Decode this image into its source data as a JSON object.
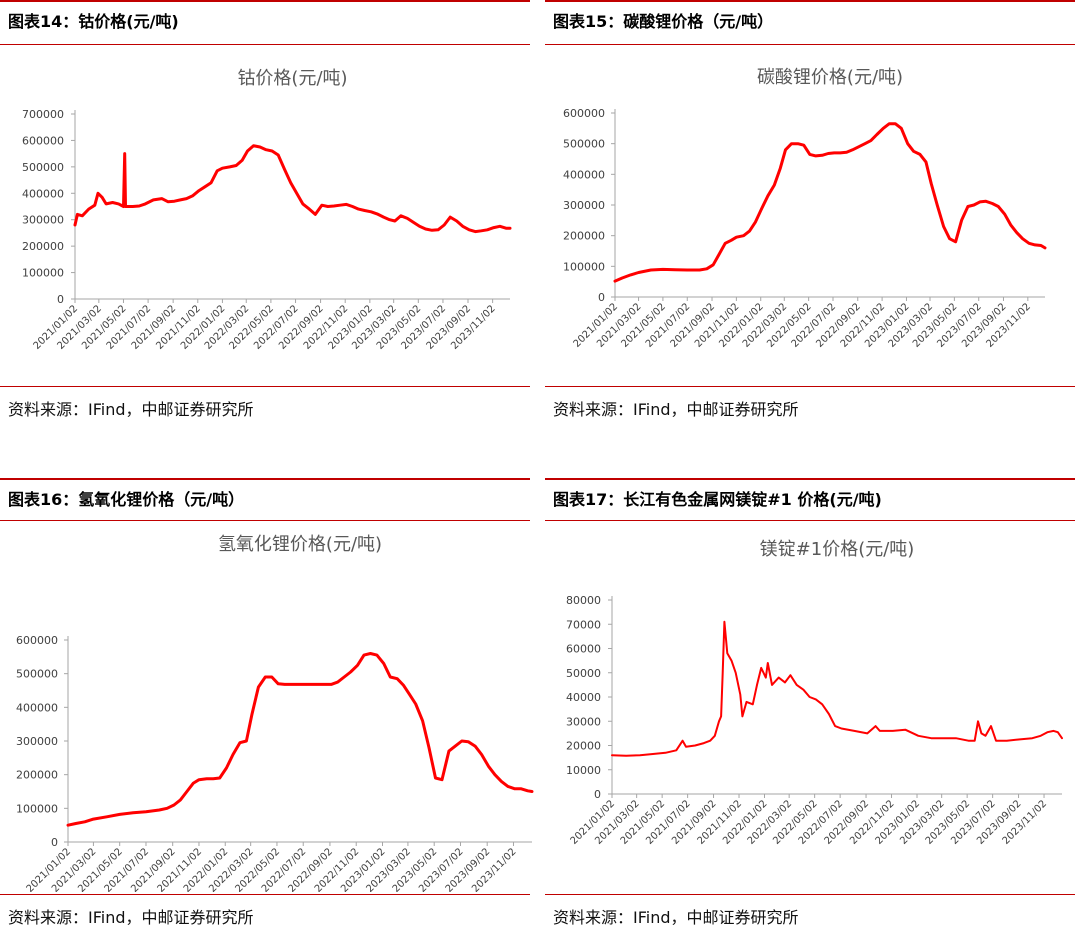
{
  "panels": [
    {
      "title": "图表14：钴价格(元/吨)",
      "source": "资料来源：IFind，中邮证券研究所"
    },
    {
      "title": "图表15：碳酸锂价格（元/吨）",
      "source": "资料来源：IFind，中邮证券研究所"
    },
    {
      "title": "图表16：氢氧化锂价格（元/吨）",
      "source": "资料来源：IFind，中邮证券研究所"
    },
    {
      "title": "图表17：长江有色金属网镁锭#1 价格(元/吨)",
      "source": "资料来源：IFind，中邮证券研究所"
    }
  ],
  "chart_data": [
    {
      "type": "line",
      "title": "钴价格(元/吨)",
      "color": "#ff0000",
      "ylim": [
        0,
        700000
      ],
      "yticks": [
        "0",
        "100000",
        "200000",
        "300000",
        "400000",
        "500000",
        "600000",
        "700000"
      ],
      "xlim": [
        "2021-01-02",
        "2023-12-15"
      ],
      "xticks": [
        "2021/01/02",
        "2021/03/02",
        "2021/05/02",
        "2021/07/02",
        "2021/09/02",
        "2021/11/02",
        "2022/01/02",
        "2022/03/02",
        "2022/05/02",
        "2022/07/02",
        "2022/09/02",
        "2022/11/02",
        "2023/01/02",
        "2023/03/02",
        "2023/05/02",
        "2023/07/02",
        "2023/09/02",
        "2023/11/02"
      ],
      "grid": false,
      "x": [
        "2021-01-02",
        "2021-01-08",
        "2021-01-20",
        "2021-02-05",
        "2021-02-20",
        "2021-02-28",
        "2021-03-10",
        "2021-03-20",
        "2021-04-05",
        "2021-04-20",
        "2021-05-02",
        "2021-05-05",
        "2021-05-07",
        "2021-05-10",
        "2021-05-25",
        "2021-06-10",
        "2021-06-25",
        "2021-07-15",
        "2021-08-05",
        "2021-08-20",
        "2021-09-05",
        "2021-09-20",
        "2021-10-05",
        "2021-10-20",
        "2021-11-05",
        "2021-11-20",
        "2021-12-05",
        "2021-12-20",
        "2022-01-02",
        "2022-01-20",
        "2022-02-05",
        "2022-02-20",
        "2022-03-05",
        "2022-03-20",
        "2022-04-05",
        "2022-04-20",
        "2022-05-05",
        "2022-05-20",
        "2022-06-05",
        "2022-06-20",
        "2022-07-05",
        "2022-07-20",
        "2022-08-05",
        "2022-08-20",
        "2022-09-05",
        "2022-09-20",
        "2022-10-05",
        "2022-10-20",
        "2022-11-05",
        "2022-11-20",
        "2022-12-05",
        "2022-12-20",
        "2023-01-05",
        "2023-01-20",
        "2023-02-05",
        "2023-02-20",
        "2023-03-05",
        "2023-03-20",
        "2023-04-05",
        "2023-04-20",
        "2023-05-05",
        "2023-05-20",
        "2023-06-05",
        "2023-06-20",
        "2023-07-05",
        "2023-07-20",
        "2023-08-05",
        "2023-08-20",
        "2023-09-05",
        "2023-09-20",
        "2023-10-05",
        "2023-10-20",
        "2023-11-05",
        "2023-11-20",
        "2023-12-05",
        "2023-12-15"
      ],
      "values": [
        280000,
        320000,
        315000,
        340000,
        355000,
        400000,
        385000,
        360000,
        365000,
        360000,
        350000,
        550000,
        350000,
        350000,
        350000,
        352000,
        360000,
        375000,
        380000,
        368000,
        370000,
        375000,
        380000,
        390000,
        410000,
        425000,
        440000,
        485000,
        495000,
        500000,
        505000,
        525000,
        560000,
        580000,
        575000,
        565000,
        560000,
        545000,
        490000,
        440000,
        400000,
        360000,
        340000,
        320000,
        355000,
        350000,
        352000,
        355000,
        358000,
        350000,
        340000,
        335000,
        330000,
        322000,
        310000,
        300000,
        295000,
        315000,
        305000,
        290000,
        275000,
        265000,
        260000,
        262000,
        280000,
        310000,
        295000,
        275000,
        262000,
        255000,
        258000,
        262000,
        270000,
        275000,
        268000,
        268000
      ]
    },
    {
      "type": "line",
      "title": "碳酸锂价格(元/吨)",
      "color": "#ff0000",
      "ylim": [
        0,
        600000
      ],
      "yticks": [
        "0",
        "100000",
        "200000",
        "300000",
        "400000",
        "500000",
        "600000"
      ],
      "xlim": [
        "2021-01-02",
        "2023-12-15"
      ],
      "xticks": [
        "2021/01/02",
        "2021/03/02",
        "2021/05/02",
        "2021/07/02",
        "2021/09/02",
        "2021/11/02",
        "2022/01/02",
        "2022/03/02",
        "2022/05/02",
        "2022/07/02",
        "2022/09/02",
        "2022/11/02",
        "2023/01/02",
        "2023/03/02",
        "2023/05/02",
        "2023/07/02",
        "2023/09/02",
        "2023/11/02"
      ],
      "grid": false,
      "x": [
        "2021-01-02",
        "2021-01-20",
        "2021-02-10",
        "2021-03-02",
        "2021-04-02",
        "2021-05-02",
        "2021-06-02",
        "2021-07-02",
        "2021-08-02",
        "2021-08-20",
        "2021-09-05",
        "2021-09-20",
        "2021-10-05",
        "2021-10-20",
        "2021-11-02",
        "2021-11-20",
        "2021-12-05",
        "2021-12-20",
        "2022-01-05",
        "2022-01-20",
        "2022-02-05",
        "2022-02-20",
        "2022-03-05",
        "2022-03-20",
        "2022-04-05",
        "2022-04-20",
        "2022-05-05",
        "2022-05-20",
        "2022-06-05",
        "2022-06-20",
        "2022-07-05",
        "2022-07-20",
        "2022-08-05",
        "2022-08-20",
        "2022-09-05",
        "2022-09-20",
        "2022-10-05",
        "2022-10-20",
        "2022-11-05",
        "2022-11-20",
        "2022-12-05",
        "2022-12-20",
        "2023-01-05",
        "2023-01-20",
        "2023-02-05",
        "2023-02-20",
        "2023-03-05",
        "2023-03-20",
        "2023-04-05",
        "2023-04-20",
        "2023-05-05",
        "2023-05-20",
        "2023-06-05",
        "2023-06-20",
        "2023-07-05",
        "2023-07-20",
        "2023-08-05",
        "2023-08-20",
        "2023-09-05",
        "2023-09-20",
        "2023-10-05",
        "2023-10-20",
        "2023-11-05",
        "2023-11-20",
        "2023-12-05",
        "2023-12-15"
      ],
      "values": [
        52000,
        62000,
        72000,
        80000,
        88000,
        90000,
        89000,
        88000,
        88000,
        92000,
        105000,
        140000,
        175000,
        185000,
        195000,
        200000,
        215000,
        245000,
        290000,
        330000,
        365000,
        420000,
        480000,
        500000,
        500000,
        495000,
        465000,
        460000,
        462000,
        468000,
        470000,
        470000,
        472000,
        480000,
        490000,
        500000,
        510000,
        530000,
        550000,
        565000,
        565000,
        550000,
        500000,
        475000,
        465000,
        440000,
        370000,
        300000,
        230000,
        190000,
        180000,
        250000,
        295000,
        300000,
        310000,
        312000,
        305000,
        295000,
        270000,
        235000,
        210000,
        190000,
        175000,
        170000,
        168000,
        160000
      ]
    },
    {
      "type": "line",
      "title": "氢氧化锂价格(元/吨)",
      "color": "#ff0000",
      "ylim": [
        0,
        600000
      ],
      "yticks": [
        "0",
        "100000",
        "200000",
        "300000",
        "400000",
        "500000",
        "600000"
      ],
      "xlim": [
        "2021-01-02",
        "2023-12-15"
      ],
      "xticks": [
        "2021/01/02",
        "2021/03/02",
        "2021/05/02",
        "2021/07/02",
        "2021/09/02",
        "2021/11/02",
        "2022/01/02",
        "2022/03/02",
        "2022/05/02",
        "2022/07/02",
        "2022/09/02",
        "2022/11/02",
        "2023/01/02",
        "2023/03/02",
        "2023/05/02",
        "2023/07/02",
        "2023/09/02",
        "2023/11/02"
      ],
      "grid": false,
      "x": [
        "2021-01-02",
        "2021-01-20",
        "2021-02-10",
        "2021-03-02",
        "2021-04-02",
        "2021-05-02",
        "2021-06-02",
        "2021-07-02",
        "2021-08-02",
        "2021-08-20",
        "2021-09-05",
        "2021-09-20",
        "2021-10-05",
        "2021-10-20",
        "2021-11-02",
        "2021-11-20",
        "2021-12-05",
        "2021-12-20",
        "2022-01-05",
        "2022-01-20",
        "2022-02-05",
        "2022-02-20",
        "2022-03-05",
        "2022-03-20",
        "2022-04-05",
        "2022-04-20",
        "2022-05-05",
        "2022-05-20",
        "2022-06-05",
        "2022-07-05",
        "2022-08-05",
        "2022-09-05",
        "2022-09-20",
        "2022-10-05",
        "2022-10-20",
        "2022-11-05",
        "2022-11-20",
        "2022-12-05",
        "2022-12-20",
        "2023-01-05",
        "2023-01-20",
        "2023-02-05",
        "2023-02-20",
        "2023-03-05",
        "2023-03-20",
        "2023-04-05",
        "2023-04-20",
        "2023-05-05",
        "2023-05-20",
        "2023-06-05",
        "2023-06-20",
        "2023-07-05",
        "2023-07-20",
        "2023-08-05",
        "2023-08-20",
        "2023-09-05",
        "2023-09-20",
        "2023-10-05",
        "2023-10-20",
        "2023-11-05",
        "2023-11-20",
        "2023-12-05",
        "2023-12-15"
      ],
      "values": [
        50000,
        55000,
        60000,
        68000,
        75000,
        82000,
        87000,
        90000,
        95000,
        100000,
        110000,
        125000,
        150000,
        175000,
        185000,
        188000,
        188000,
        190000,
        220000,
        260000,
        295000,
        300000,
        380000,
        460000,
        490000,
        490000,
        470000,
        468000,
        468000,
        468000,
        468000,
        468000,
        475000,
        490000,
        505000,
        525000,
        555000,
        560000,
        555000,
        530000,
        490000,
        485000,
        465000,
        440000,
        410000,
        360000,
        280000,
        190000,
        185000,
        270000,
        285000,
        300000,
        298000,
        285000,
        260000,
        225000,
        200000,
        180000,
        165000,
        158000,
        158000,
        152000,
        150000
      ]
    },
    {
      "type": "line",
      "title": "镁锭#1价格(元/吨)",
      "color": "#ff0000",
      "ylim": [
        0,
        80000
      ],
      "yticks": [
        "0",
        "10000",
        "20000",
        "30000",
        "40000",
        "50000",
        "60000",
        "70000",
        "80000"
      ],
      "xlim": [
        "2021-01-02",
        "2023-12-15"
      ],
      "xticks": [
        "2021/01/02",
        "2021/03/02",
        "2021/05/02",
        "2021/07/02",
        "2021/09/02",
        "2021/11/02",
        "2022/01/02",
        "2022/03/02",
        "2022/05/02",
        "2022/07/02",
        "2022/09/02",
        "2022/11/02",
        "2023/01/02",
        "2023/03/02",
        "2023/05/02",
        "2023/07/02",
        "2023/09/02",
        "2023/11/02"
      ],
      "grid": false,
      "x": [
        "2021-01-02",
        "2021-02-05",
        "2021-03-10",
        "2021-04-10",
        "2021-05-10",
        "2021-06-05",
        "2021-06-20",
        "2021-06-28",
        "2021-07-20",
        "2021-08-10",
        "2021-08-25",
        "2021-09-05",
        "2021-09-15",
        "2021-09-20",
        "2021-09-24",
        "2021-09-28",
        "2021-10-05",
        "2021-10-15",
        "2021-10-25",
        "2021-11-05",
        "2021-11-10",
        "2021-11-20",
        "2021-12-05",
        "2021-12-15",
        "2021-12-25",
        "2022-01-05",
        "2022-01-10",
        "2022-01-20",
        "2022-02-05",
        "2022-02-20",
        "2022-03-05",
        "2022-03-20",
        "2022-04-05",
        "2022-04-20",
        "2022-05-05",
        "2022-05-20",
        "2022-06-05",
        "2022-06-20",
        "2022-07-05",
        "2022-08-05",
        "2022-09-05",
        "2022-09-25",
        "2022-10-05",
        "2022-11-05",
        "2022-12-05",
        "2023-01-05",
        "2023-02-05",
        "2023-03-05",
        "2023-04-05",
        "2023-05-05",
        "2023-05-20",
        "2023-05-28",
        "2023-06-05",
        "2023-06-15",
        "2023-06-28",
        "2023-07-10",
        "2023-08-05",
        "2023-09-05",
        "2023-10-05",
        "2023-10-25",
        "2023-11-10",
        "2023-11-25",
        "2023-12-05",
        "2023-12-15"
      ],
      "values": [
        16000,
        15800,
        16000,
        16500,
        17000,
        18000,
        22000,
        19500,
        20000,
        21000,
        22000,
        24000,
        30000,
        32000,
        50000,
        71000,
        58000,
        55000,
        50000,
        41000,
        32000,
        38000,
        37000,
        45000,
        52000,
        48000,
        54000,
        45000,
        48000,
        46000,
        49000,
        45000,
        43000,
        40000,
        39000,
        37000,
        33000,
        28000,
        27000,
        26000,
        25000,
        28000,
        26000,
        26000,
        26500,
        24000,
        23000,
        23000,
        23000,
        22000,
        22000,
        30000,
        25000,
        24000,
        28000,
        22000,
        22000,
        22500,
        23000,
        24000,
        25500,
        26000,
        25500,
        23000
      ]
    }
  ]
}
